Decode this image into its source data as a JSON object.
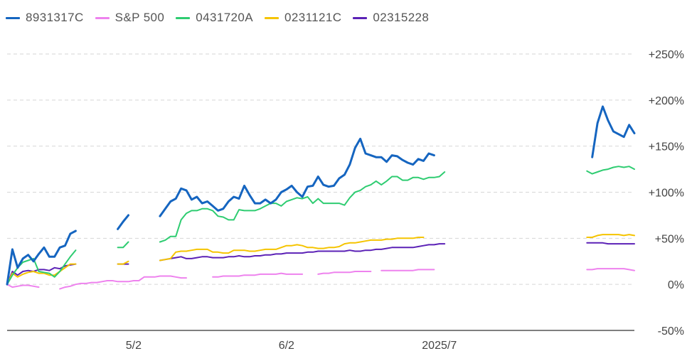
{
  "legend": [
    {
      "name": "8931317C",
      "color": "#1565c0"
    },
    {
      "name": "S&P 500",
      "color": "#ee82ee"
    },
    {
      "name": "0431720A",
      "color": "#2ecc71"
    },
    {
      "name": "0231121C",
      "color": "#f5c400"
    },
    {
      "name": "02315228",
      "color": "#5b21b6"
    }
  ],
  "chart_data": {
    "type": "line",
    "y_axis": {
      "ticks": [
        250,
        200,
        150,
        100,
        50,
        0,
        -50
      ],
      "tick_labels": [
        "+250%",
        "+200%",
        "+150%",
        "+100%",
        "+50%",
        "0%",
        "-50%"
      ],
      "ylim": [
        -50,
        250
      ],
      "grid": true
    },
    "x_axis": {
      "tick_labels": [
        {
          "label": "5/2",
          "index": 24
        },
        {
          "label": "6/2",
          "index": 53
        },
        {
          "label": "2025/7",
          "index": 82
        }
      ],
      "n_points": 120
    },
    "series": [
      {
        "name": "8931317C",
        "color": "#1565c0",
        "width": 3,
        "values": [
          0,
          38,
          18,
          28,
          32,
          25,
          33,
          40,
          30,
          30,
          40,
          42,
          55,
          58,
          null,
          null,
          null,
          null,
          null,
          null,
          null,
          60,
          68,
          75,
          null,
          null,
          null,
          null,
          null,
          74,
          82,
          90,
          93,
          104,
          102,
          92,
          95,
          88,
          90,
          85,
          80,
          82,
          90,
          95,
          93,
          107,
          97,
          88,
          88,
          92,
          88,
          92,
          100,
          103,
          107,
          100,
          95,
          106,
          107,
          117,
          108,
          106,
          107,
          115,
          119,
          130,
          148,
          158,
          142,
          140,
          138,
          138,
          133,
          140,
          139,
          135,
          132,
          130,
          136,
          134,
          142,
          140,
          null,
          null,
          null,
          null,
          null,
          null,
          null,
          null,
          null,
          null,
          null,
          null,
          null,
          null,
          null,
          null,
          null,
          null,
          null,
          null,
          null,
          null,
          null,
          null,
          null,
          null,
          null,
          null,
          null,
          null,
          null,
          null,
          null,
          null,
          null,
          null,
          null,
          null
        ],
        "tail": [
          null,
          138,
          175,
          193,
          178,
          166,
          163,
          160,
          173,
          164
        ]
      },
      {
        "name": "S&P 500",
        "color": "#ee82ee",
        "width": 2,
        "values": [
          0,
          -3,
          -2,
          -1,
          -1,
          -2,
          -3,
          null,
          null,
          null,
          -5,
          -3,
          -2,
          0,
          1,
          1,
          2,
          2,
          3,
          4,
          4,
          3,
          3,
          3,
          4,
          4,
          8,
          8,
          8,
          9,
          9,
          9,
          8,
          7,
          7,
          null,
          null,
          null,
          null,
          8,
          8,
          9,
          9,
          9,
          9,
          10,
          10,
          10,
          11,
          11,
          11,
          11,
          12,
          11,
          11,
          11,
          11,
          null,
          null,
          11,
          12,
          12,
          13,
          13,
          13,
          13,
          14,
          14,
          14,
          14,
          null,
          15,
          15,
          15,
          15,
          15,
          15,
          15,
          16,
          16,
          16,
          16,
          null,
          null,
          null,
          null,
          null,
          null,
          null,
          null,
          null,
          null,
          null,
          null,
          null,
          null,
          null,
          null,
          null,
          null,
          null,
          null,
          null,
          null,
          null,
          null,
          null,
          null,
          null,
          null,
          null,
          null,
          null,
          null,
          null,
          null,
          null,
          null,
          null,
          null
        ],
        "tail": [
          16,
          16,
          17,
          17,
          17,
          17,
          17,
          17,
          16,
          15
        ]
      },
      {
        "name": "0431720A",
        "color": "#2ecc71",
        "width": 2,
        "values": [
          0,
          10,
          18,
          24,
          26,
          28,
          14,
          13,
          12,
          8,
          14,
          22,
          30,
          37,
          null,
          null,
          null,
          null,
          null,
          null,
          null,
          40,
          40,
          46,
          null,
          null,
          null,
          null,
          null,
          46,
          48,
          52,
          52,
          70,
          77,
          80,
          80,
          82,
          82,
          80,
          74,
          73,
          70,
          70,
          81,
          80,
          80,
          80,
          82,
          85,
          88,
          88,
          85,
          90,
          92,
          94,
          93,
          95,
          88,
          93,
          88,
          88,
          88,
          88,
          86,
          94,
          100,
          102,
          106,
          108,
          112,
          108,
          112,
          117,
          117,
          113,
          113,
          116,
          116,
          114,
          116,
          116,
          117,
          122,
          null,
          null,
          null,
          null,
          null,
          null,
          null,
          null,
          null,
          null,
          null,
          null,
          null,
          null,
          null,
          null,
          null,
          null,
          null,
          null,
          null,
          null,
          null,
          null,
          null,
          null,
          null,
          null,
          null,
          null,
          null,
          null,
          null,
          null,
          null,
          null
        ],
        "tail": [
          123,
          120,
          122,
          124,
          125,
          127,
          128,
          127,
          128,
          125
        ]
      },
      {
        "name": "0231121C",
        "color": "#f5c400",
        "width": 2,
        "values": [
          0,
          12,
          8,
          11,
          13,
          14,
          12,
          12,
          10,
          10,
          14,
          18,
          22,
          22,
          null,
          null,
          null,
          null,
          null,
          null,
          null,
          22,
          22,
          25,
          null,
          null,
          null,
          null,
          null,
          26,
          27,
          28,
          35,
          36,
          36,
          37,
          38,
          38,
          38,
          35,
          35,
          34,
          34,
          37,
          37,
          37,
          36,
          36,
          37,
          38,
          38,
          38,
          40,
          42,
          42,
          43,
          42,
          40,
          40,
          39,
          39,
          40,
          40,
          41,
          44,
          45,
          45,
          46,
          47,
          48,
          48,
          48,
          49,
          49,
          50,
          50,
          50,
          50,
          51,
          51,
          null,
          null,
          null,
          null,
          null,
          null,
          null,
          null,
          null,
          null,
          null,
          null,
          null,
          null,
          null,
          null,
          null,
          null,
          null,
          null,
          null,
          null,
          null,
          null,
          null,
          null,
          null,
          null,
          null,
          null,
          null,
          null,
          null,
          null,
          null,
          null,
          null,
          null,
          null,
          null
        ],
        "tail": [
          51,
          51,
          53,
          54,
          54,
          54,
          54,
          53,
          54,
          53
        ]
      },
      {
        "name": "02315228",
        "color": "#5b21b6",
        "width": 2,
        "values": [
          0,
          14,
          10,
          14,
          15,
          14,
          16,
          16,
          15,
          18,
          17,
          20,
          21,
          22,
          null,
          null,
          null,
          null,
          null,
          null,
          null,
          22,
          22,
          22,
          null,
          null,
          null,
          null,
          null,
          26,
          27,
          28,
          29,
          30,
          28,
          28,
          29,
          30,
          30,
          29,
          29,
          29,
          30,
          30,
          31,
          30,
          30,
          31,
          31,
          32,
          32,
          33,
          33,
          34,
          34,
          34,
          34,
          35,
          35,
          36,
          36,
          36,
          36,
          36,
          36,
          37,
          36,
          36,
          37,
          37,
          38,
          38,
          39,
          40,
          40,
          40,
          40,
          40,
          41,
          42,
          43,
          43,
          44,
          44,
          null,
          null,
          null,
          null,
          null,
          null,
          null,
          null,
          null,
          null,
          null,
          null,
          null,
          null,
          null,
          null,
          null,
          null,
          null,
          null,
          null,
          null,
          null,
          null,
          null,
          null,
          null,
          null,
          null,
          null,
          null,
          null,
          null,
          null,
          null,
          null
        ],
        "tail": [
          45,
          45,
          45,
          45,
          44,
          44,
          44,
          44,
          44,
          44
        ]
      }
    ]
  }
}
